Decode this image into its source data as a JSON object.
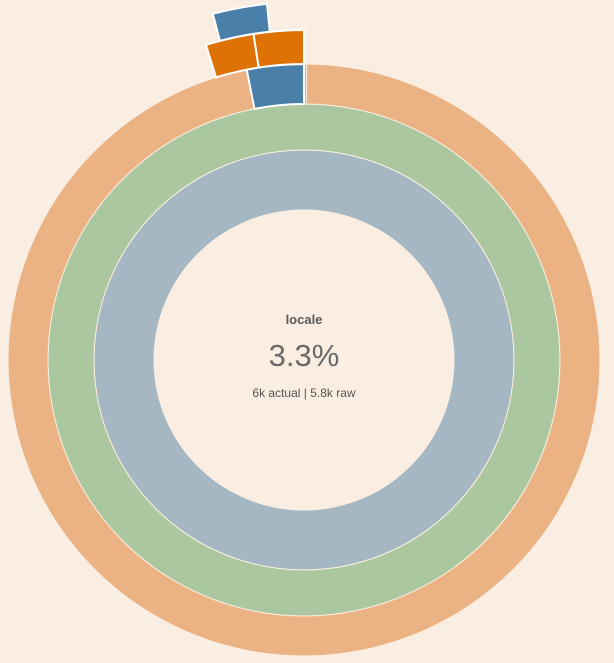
{
  "chart_data": {
    "type": "sunburst",
    "center": {
      "name": "locale",
      "percent": "3.3%",
      "detail": "6k actual | 5.8k raw"
    },
    "rings": [
      {
        "level": 1,
        "segments": [
          {
            "start": 0.0,
            "end": 1.0,
            "color": "#a4b7c2"
          }
        ]
      },
      {
        "level": 2,
        "segments": [
          {
            "start": 0.0,
            "end": 1.0,
            "color": "#abc79f"
          }
        ]
      },
      {
        "level": 3,
        "segments": [
          {
            "start": 0.0,
            "end": 0.0015,
            "color": "#e8a878"
          },
          {
            "start": 0.0015,
            "end": 0.969,
            "color": "#ebb283"
          },
          {
            "start": 0.969,
            "end": 1.0,
            "color": "#4a7fa9",
            "highlight": true
          }
        ]
      },
      {
        "level": 4,
        "segments": [
          {
            "start": 0.9755,
            "end": 1.0,
            "color": "#de7204",
            "highlight": true
          },
          {
            "start": 0.952,
            "end": 0.9755,
            "color": "#de7204",
            "highlight": true
          }
        ]
      },
      {
        "level": 5,
        "segments": [
          {
            "start": 0.959,
            "end": 0.9835,
            "color": "#4a7fa9",
            "highlight": true
          }
        ]
      }
    ]
  }
}
